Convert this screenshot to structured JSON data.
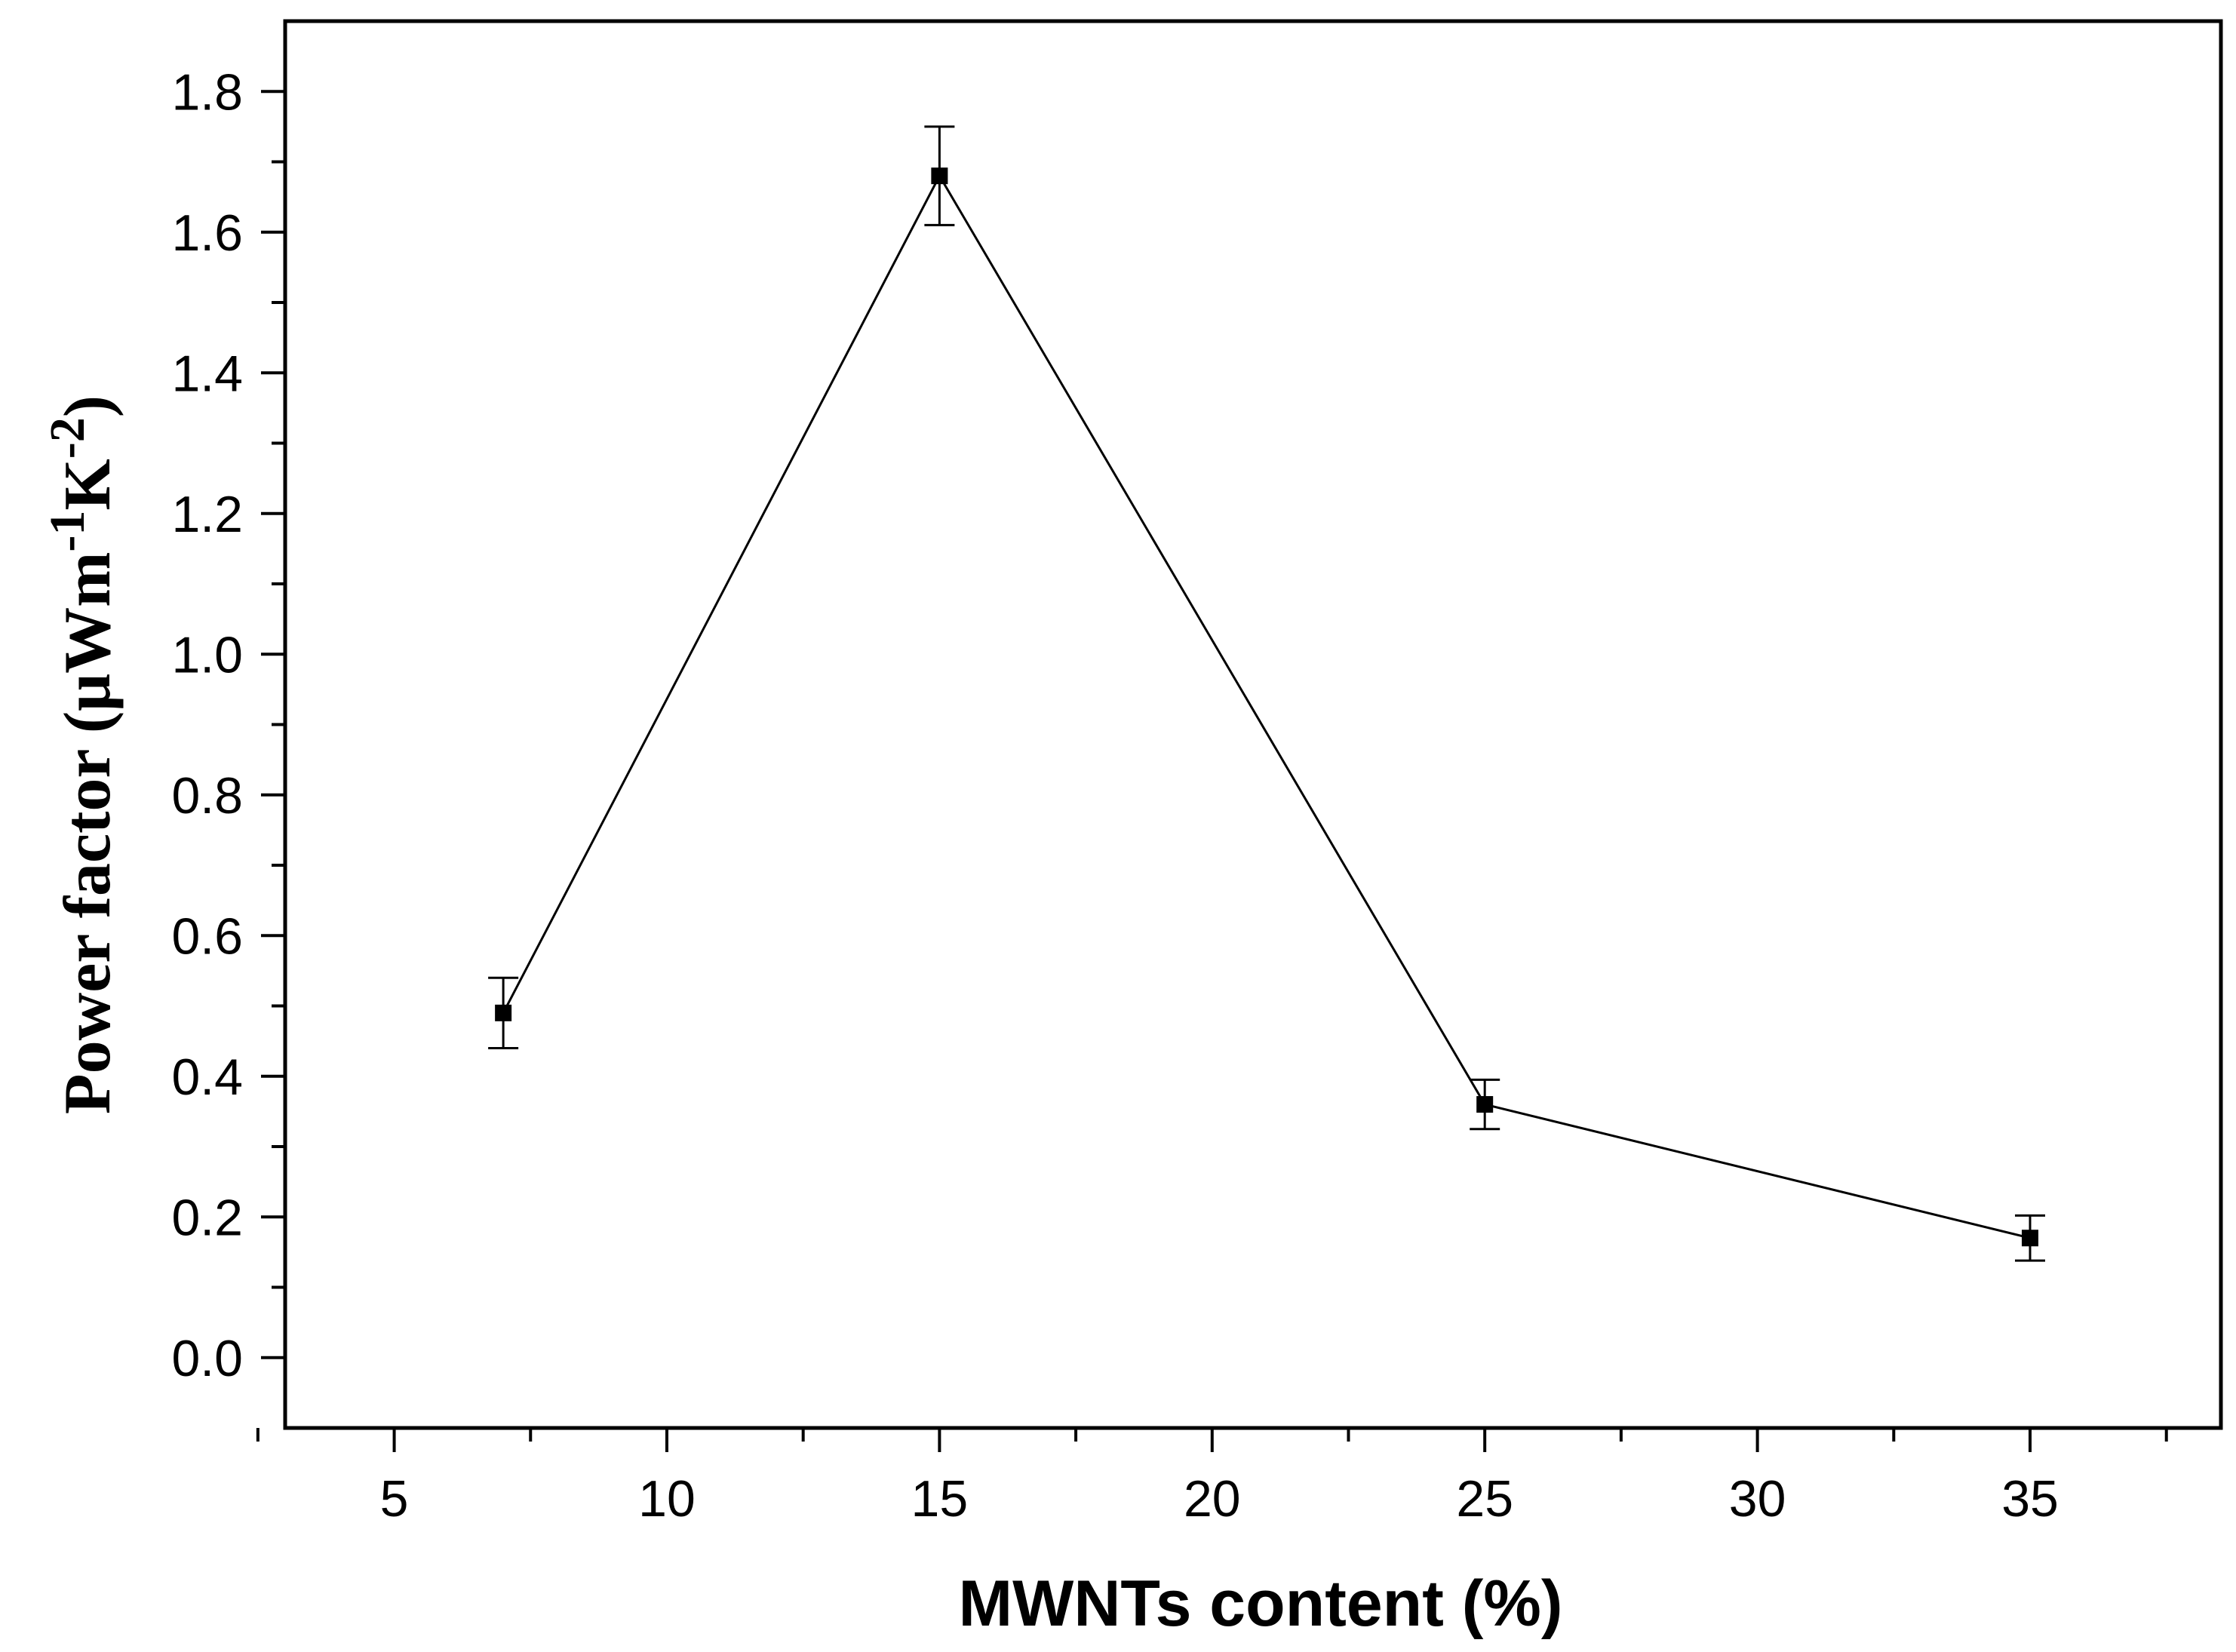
{
  "chart_data": {
    "type": "line",
    "title": "",
    "xlabel": "MWNTs content (%)",
    "ylabel": {
      "prefix": "Power factor (μWm",
      "sup1": "-1",
      "mid": "K",
      "sup2": "-2",
      "suffix": ")"
    },
    "xlim": [
      3,
      38.5
    ],
    "ylim": [
      -0.1,
      1.9
    ],
    "xticks": [
      5,
      10,
      15,
      20,
      25,
      30,
      35
    ],
    "xtick_labels": [
      "5",
      "10",
      "15",
      "20",
      "25",
      "30",
      "35"
    ],
    "yticks": [
      0.0,
      0.2,
      0.4,
      0.6,
      0.8,
      1.0,
      1.2,
      1.4,
      1.6,
      1.8
    ],
    "ytick_labels": [
      "0.0",
      "0.2",
      "0.4",
      "0.6",
      "0.8",
      "1.0",
      "1.2",
      "1.4",
      "1.6",
      "1.8"
    ],
    "grid": false,
    "legend": "none",
    "series": [
      {
        "x": [
          7,
          15,
          25,
          35
        ],
        "y": [
          0.49,
          1.68,
          0.36,
          0.17
        ],
        "error": [
          0.05,
          0.07,
          0.035,
          0.032
        ],
        "marker": "square",
        "color": "#000000"
      }
    ]
  }
}
